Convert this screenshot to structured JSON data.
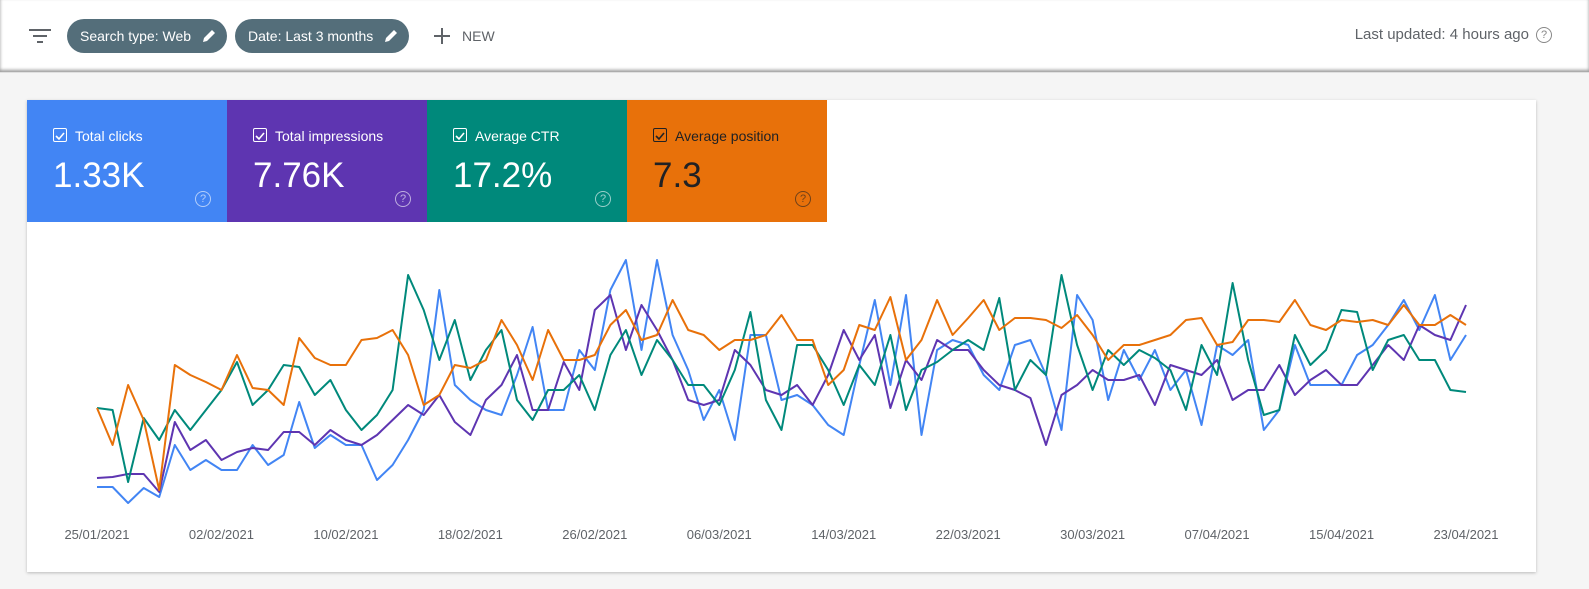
{
  "toolbar": {
    "chips": [
      "Search type: Web",
      "Date: Last 3 months"
    ],
    "new_button": "NEW",
    "last_updated": "Last updated: 4 hours ago"
  },
  "metrics": [
    {
      "value": "1.33K"
    },
    {
      "value": "7.76K"
    },
    {
      "value": "17.2%"
    },
    {
      "value": "7.3"
    }
  ],
  "chart_data": {
    "type": "line",
    "categories": [
      "25/01/2021",
      null,
      null,
      null,
      null,
      null,
      null,
      null,
      "02/02/2021",
      null,
      null,
      null,
      null,
      null,
      null,
      null,
      "10/02/2021",
      null,
      null,
      null,
      null,
      null,
      null,
      null,
      "18/02/2021",
      null,
      null,
      null,
      null,
      null,
      null,
      null,
      "26/02/2021",
      null,
      null,
      null,
      null,
      null,
      null,
      null,
      "06/03/2021",
      null,
      null,
      null,
      null,
      null,
      null,
      null,
      "14/03/2021",
      null,
      null,
      null,
      null,
      null,
      null,
      null,
      "22/03/2021",
      null,
      null,
      null,
      null,
      null,
      null,
      null,
      "30/03/2021",
      null,
      null,
      null,
      null,
      null,
      null,
      null,
      "07/04/2021",
      null,
      null,
      null,
      null,
      null,
      null,
      null,
      "15/04/2021",
      null,
      null,
      null,
      null,
      null,
      null,
      null,
      "23/04/2021"
    ],
    "ylim": [
      0,
      260
    ],
    "grid": false,
    "series": [
      {
        "name": "Total clicks",
        "color": "#4285f4",
        "values": [
          23,
          23,
          7,
          22,
          13,
          65,
          40,
          50,
          40,
          40,
          65,
          45,
          55,
          108,
          62,
          75,
          65,
          65,
          30,
          45,
          70,
          100,
          220,
          125,
          110,
          100,
          95,
          135,
          183,
          100,
          100,
          160,
          140,
          220,
          250,
          160,
          250,
          175,
          140,
          90,
          120,
          70,
          175,
          175,
          110,
          115,
          105,
          85,
          75,
          145,
          210,
          125,
          215,
          75,
          160,
          170,
          165,
          135,
          120,
          165,
          170,
          135,
          80,
          215,
          190,
          110,
          160,
          130,
          160,
          120,
          140,
          85,
          165,
          155,
          170,
          80,
          100,
          165,
          125,
          125,
          125,
          155,
          165,
          185,
          210,
          180,
          215,
          150,
          175
        ]
      },
      {
        "name": "Total impressions",
        "color": "#5e35b1",
        "values": [
          32,
          33,
          36,
          36,
          18,
          88,
          60,
          70,
          50,
          58,
          62,
          60,
          78,
          78,
          65,
          80,
          70,
          65,
          75,
          90,
          105,
          95,
          115,
          88,
          75,
          110,
          125,
          155,
          100,
          100,
          148,
          120,
          200,
          215,
          160,
          205,
          180,
          150,
          110,
          105,
          110,
          160,
          145,
          120,
          115,
          125,
          105,
          135,
          180,
          150,
          175,
          102,
          150,
          130,
          170,
          160,
          160,
          140,
          125,
          120,
          112,
          65,
          115,
          125,
          140,
          130,
          130,
          135,
          105,
          145,
          140,
          135,
          150,
          110,
          120,
          120,
          145,
          115,
          130,
          140,
          125,
          125,
          145,
          165,
          150,
          185,
          175,
          170,
          205
        ]
      },
      {
        "name": "Average CTR",
        "color": "#00897b",
        "values": [
          102,
          100,
          28,
          92,
          70,
          100,
          80,
          100,
          120,
          148,
          105,
          120,
          145,
          143,
          115,
          130,
          100,
          80,
          95,
          120,
          235,
          200,
          150,
          190,
          130,
          160,
          180,
          110,
          90,
          120,
          120,
          135,
          100,
          155,
          180,
          135,
          170,
          150,
          125,
          125,
          105,
          140,
          198,
          110,
          80,
          165,
          165,
          140,
          105,
          145,
          125,
          175,
          100,
          140,
          148,
          160,
          170,
          160,
          212,
          120,
          150,
          135,
          235,
          165,
          120,
          160,
          145,
          160,
          152,
          140,
          100,
          165,
          135,
          227,
          150,
          95,
          100,
          175,
          145,
          160,
          200,
          198,
          140,
          170,
          175,
          150,
          150,
          120,
          118
        ]
      },
      {
        "name": "Average position",
        "color": "#e8710a",
        "values": [
          102,
          65,
          125,
          90,
          20,
          145,
          135,
          128,
          120,
          155,
          122,
          120,
          105,
          172,
          152,
          145,
          145,
          170,
          172,
          180,
          155,
          105,
          115,
          145,
          142,
          150,
          190,
          165,
          130,
          180,
          150,
          150,
          155,
          185,
          200,
          170,
          175,
          210,
          180,
          175,
          160,
          170,
          170,
          175,
          195,
          170,
          170,
          125,
          140,
          185,
          180,
          213,
          150,
          170,
          210,
          175,
          192,
          210,
          180,
          192,
          192,
          190,
          182,
          195,
          175,
          150,
          165,
          165,
          170,
          175,
          190,
          192,
          165,
          168,
          190,
          190,
          188,
          210,
          185,
          180,
          190,
          188,
          190,
          185,
          205,
          185,
          185,
          195,
          185
        ]
      }
    ]
  }
}
